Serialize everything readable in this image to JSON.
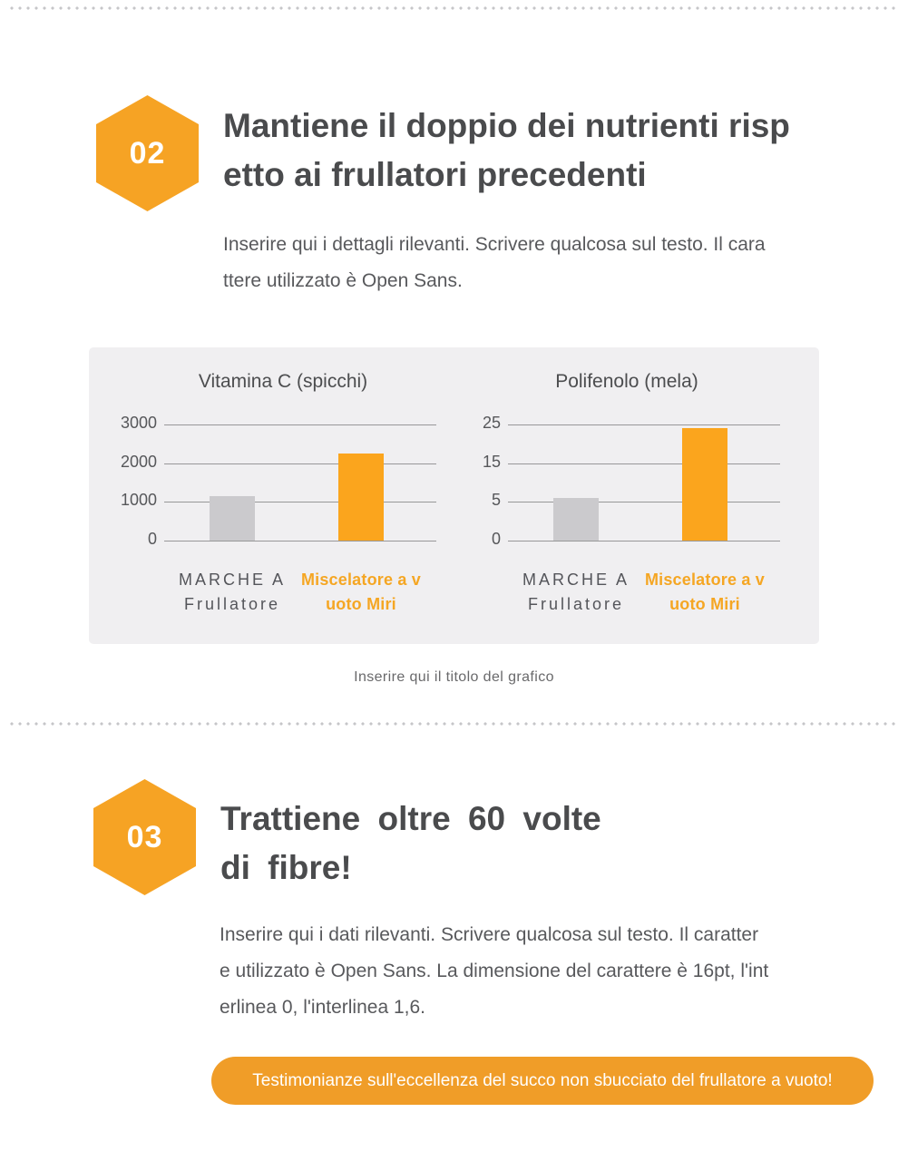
{
  "colors": {
    "accent_orange": "#F6A324",
    "bar_orange": "#FBA51D",
    "bar_gray": "#CBCACD",
    "pill_orange": "#F09D28",
    "heading_text": "#4A4B4D",
    "body_text": "#58595C",
    "panel_background": "#F0EFF1"
  },
  "sections": [
    {
      "badge": "02",
      "heading_line1": "Mantiene il doppio dei nutrienti risp",
      "heading_line2": "etto ai frullatori precedenti",
      "body_line1": "Inserire qui i dettagli rilevanti. Scrivere qualcosa sul testo. Il cara",
      "body_line2": "ttere utilizzato è Open Sans."
    },
    {
      "badge": "03",
      "heading_line1": "Trattiene oltre 60 volte",
      "heading_line2": "di fibre!",
      "body_line1": "Inserire qui i dati rilevanti. Scrivere qualcosa sul testo. Il caratter",
      "body_line2": "e utilizzato è Open Sans. La dimensione del carattere è 16pt, l'int",
      "body_line3": "erlinea 0, l'interlinea 1,6."
    }
  ],
  "chart_caption": "Inserire qui il titolo del grafico",
  "cta_label": "Testimonianze sull'eccellenza del succo non sbucciato del frullatore a vuoto!",
  "chart_data": [
    {
      "type": "bar",
      "title": "Vitamina C (spicchi)",
      "categories": [
        "MARCHE A Frullatore",
        "Miscelatore a vuoto Miri"
      ],
      "category_lines": [
        [
          "MARCHE A",
          "Frullatore"
        ],
        [
          "Miscelatore a v",
          "uoto Miri"
        ]
      ],
      "values": [
        1150,
        2250
      ],
      "bar_colors": [
        "#CBCACD",
        "#FBA51D"
      ],
      "yticks": [
        0,
        1000,
        2000,
        3000
      ],
      "ylim": [
        0,
        3000
      ],
      "grid": true,
      "legend": false
    },
    {
      "type": "bar",
      "title": "Polifenolo (mela)",
      "categories": [
        "MARCHE A Frullatore",
        "Miscelatore a vuoto Miri"
      ],
      "category_lines": [
        [
          "MARCHE A",
          "Frullatore"
        ],
        [
          "Miscelatore a v",
          "uoto Miri"
        ]
      ],
      "values": [
        6,
        24
      ],
      "bar_colors": [
        "#CBCACD",
        "#FBA51D"
      ],
      "yticks": [
        0,
        5,
        15,
        25
      ],
      "axis_note": "gridlines evenly spaced although tick values 0, 5, 15, 25 are non-linear",
      "grid": true,
      "legend": false
    }
  ]
}
